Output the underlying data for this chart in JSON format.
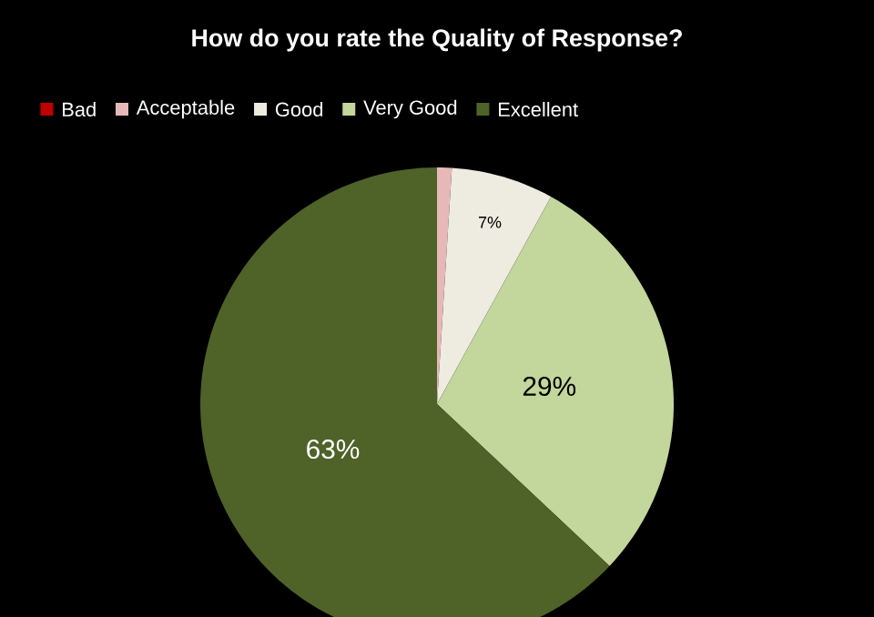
{
  "chart_data": {
    "type": "pie",
    "title": "How do you rate the Quality of Response?",
    "categories": [
      "Bad",
      "Acceptable",
      "Good",
      "Very Good",
      "Excellent"
    ],
    "values": [
      0,
      1,
      7,
      29,
      63
    ],
    "colors": [
      "#c00000",
      "#e6b9b8",
      "#eeece1",
      "#c3d69b",
      "#4f6228"
    ],
    "value_labels": [
      null,
      null,
      "7%",
      "29%",
      "63%"
    ],
    "legend": "top"
  }
}
